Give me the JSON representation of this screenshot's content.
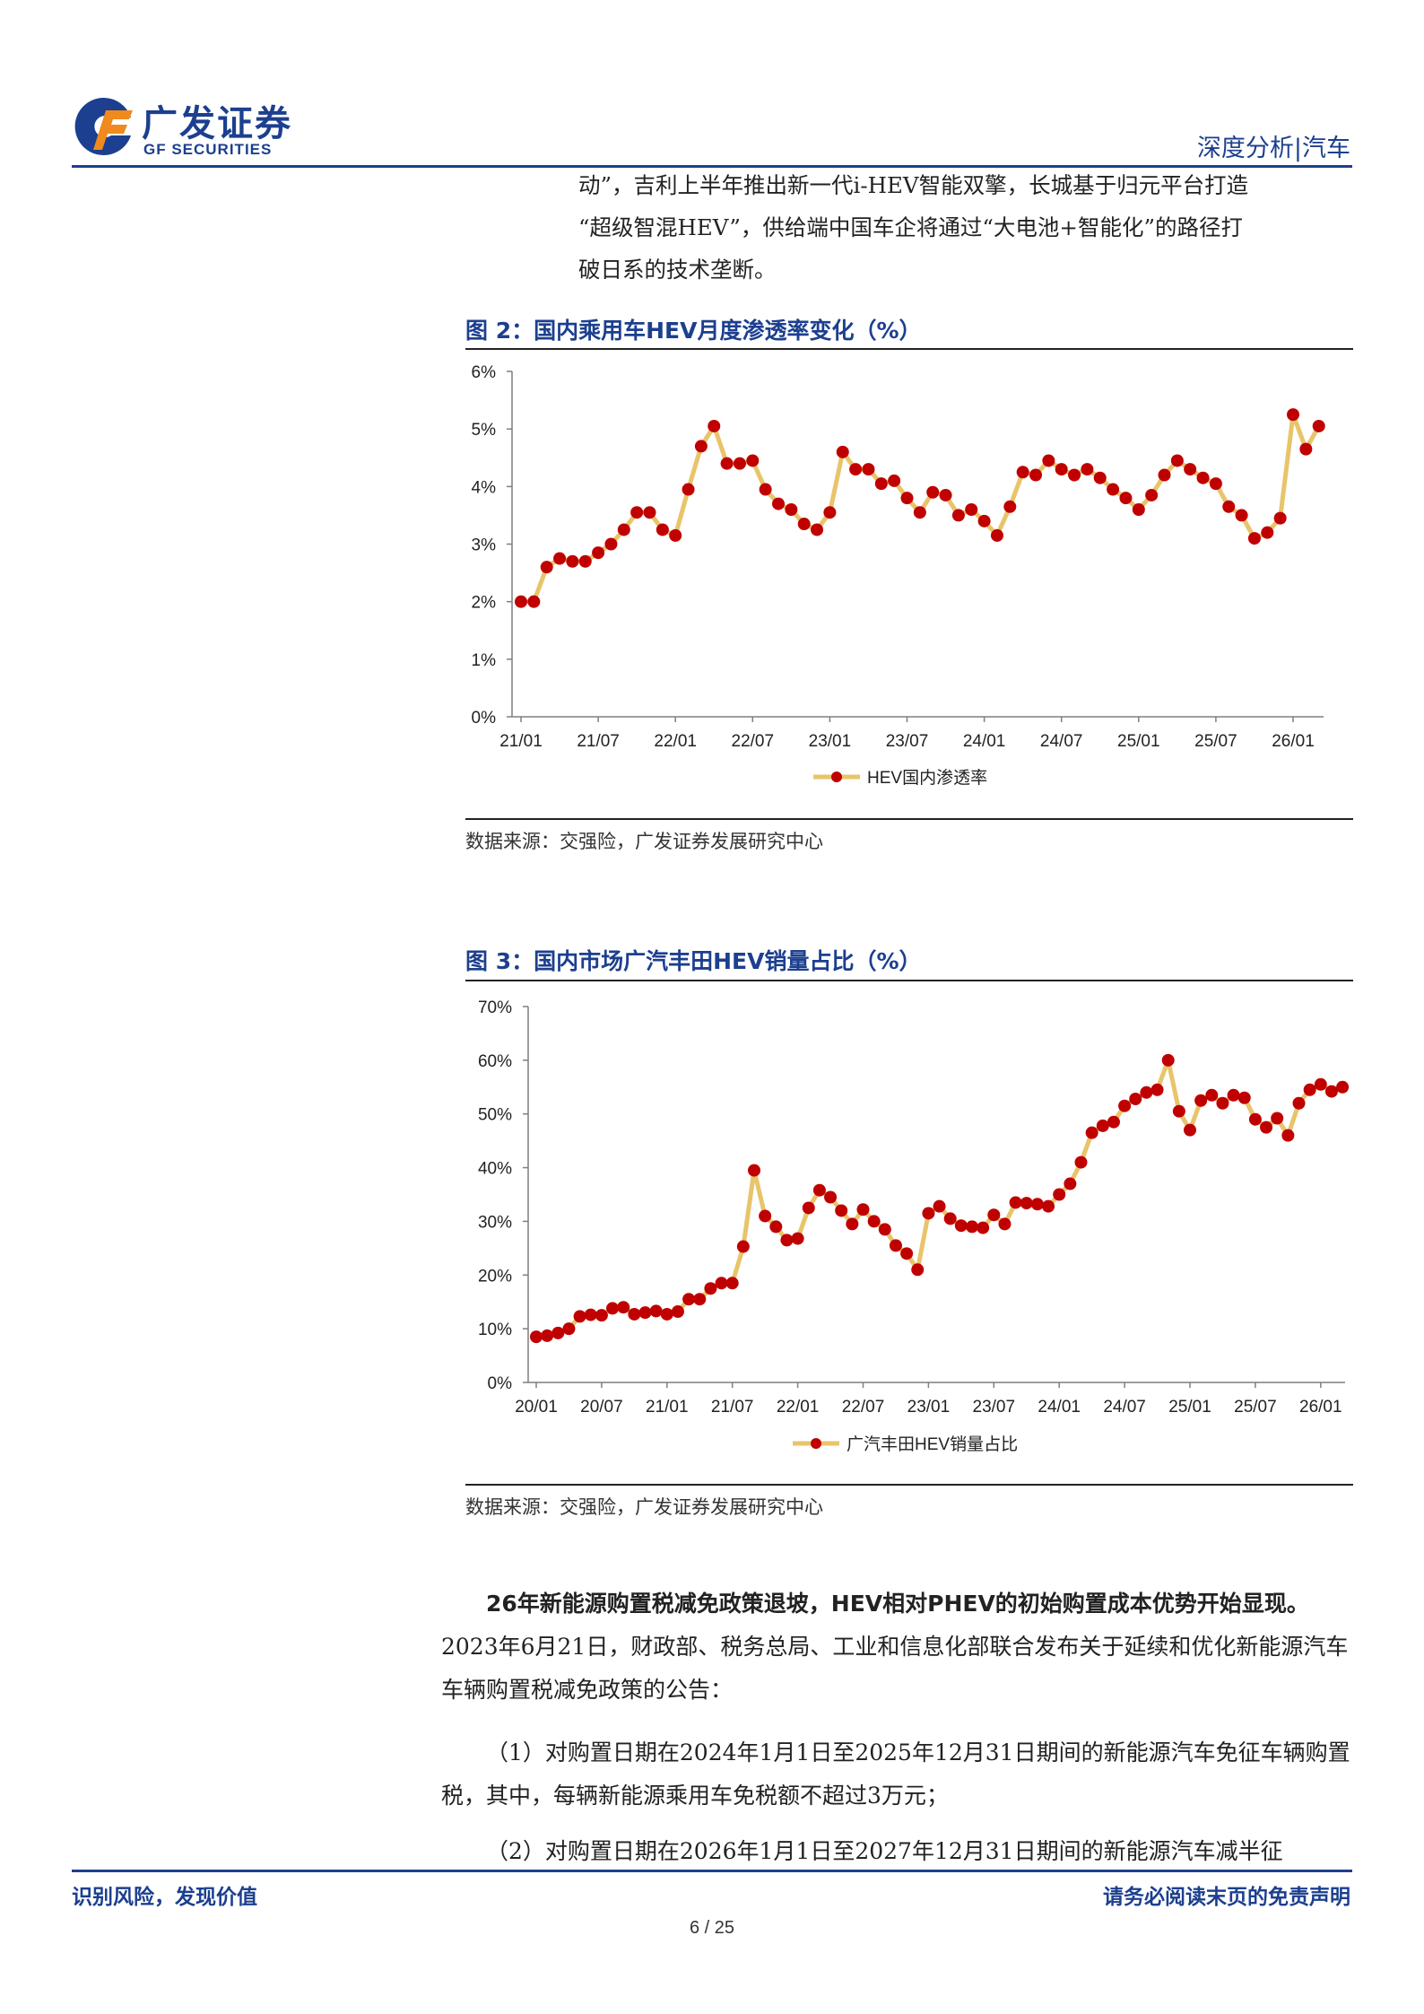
{
  "header": {
    "logo_cn": "广发证券",
    "logo_en": "GF SECURITIES",
    "section": "深度分析|汽车",
    "brand_blue": "#1c3f8f",
    "brand_orange": "#f08a1c"
  },
  "intro_lines": [
    "动”，吉利上半年推出新一代i-HEV智能双擎，长城基于归元平台打造",
    "“超级智混HEV”，供给端中国车企将通过“大电池+智能化”的路径打",
    "破日系的技术垄断。"
  ],
  "figures": [
    {
      "title": "图 2：国内乘用车HEV月度渗透率变化（%）",
      "source": "数据来源：交强险，广发证券发展研究中心"
    },
    {
      "title": "图 3：国内市场广汽丰田HEV销量占比（%）",
      "source": "数据来源：交强险，广发证券发展研究中心"
    }
  ],
  "chart_data": [
    {
      "type": "line",
      "title": "图 2：国内乘用车HEV月度渗透率变化（%）",
      "series_name": "HEV国内渗透率",
      "line_color": "#e8c46a",
      "marker_color": "#c00000",
      "ylim": [
        0,
        6
      ],
      "yticks": [
        "0%",
        "1%",
        "2%",
        "3%",
        "4%",
        "5%",
        "6%"
      ],
      "xticks": [
        "21/01",
        "21/07",
        "22/01",
        "22/07",
        "23/01",
        "23/07",
        "24/01",
        "24/07",
        "25/01",
        "25/07",
        "26/01"
      ],
      "x_start": "21/01",
      "values": [
        2.0,
        2.0,
        2.6,
        2.75,
        2.7,
        2.7,
        2.85,
        3.0,
        3.25,
        3.55,
        3.55,
        3.25,
        3.15,
        3.95,
        4.7,
        5.05,
        4.4,
        4.4,
        4.45,
        3.95,
        3.7,
        3.6,
        3.35,
        3.25,
        3.55,
        4.6,
        4.3,
        4.3,
        4.05,
        4.1,
        3.8,
        3.55,
        3.9,
        3.85,
        3.5,
        3.6,
        3.4,
        3.15,
        3.65,
        4.25,
        4.2,
        4.45,
        4.3,
        4.2,
        4.3,
        4.15,
        3.95,
        3.8,
        3.6,
        3.85,
        4.2,
        4.45,
        4.3,
        4.15,
        4.05,
        3.65,
        3.5,
        3.1,
        3.2,
        3.45,
        5.25,
        4.65,
        5.05
      ]
    },
    {
      "type": "line",
      "title": "图 3：国内市场广汽丰田HEV销量占比（%）",
      "series_name": "广汽丰田HEV销量占比",
      "line_color": "#e8c46a",
      "marker_color": "#c00000",
      "ylim": [
        0,
        70
      ],
      "yticks": [
        "0%",
        "10%",
        "20%",
        "30%",
        "40%",
        "50%",
        "60%",
        "70%"
      ],
      "xticks": [
        "20/01",
        "20/07",
        "21/01",
        "21/07",
        "22/01",
        "22/07",
        "23/01",
        "23/07",
        "24/01",
        "24/07",
        "25/01",
        "25/07",
        "26/01"
      ],
      "x_start": "20/01",
      "values": [
        8.5,
        8.7,
        9.2,
        10.0,
        12.3,
        12.6,
        12.5,
        13.8,
        14.0,
        12.7,
        13.0,
        13.3,
        12.7,
        13.2,
        15.5,
        15.5,
        17.5,
        18.5,
        18.5,
        25.3,
        39.5,
        31.0,
        29.0,
        26.5,
        26.8,
        32.5,
        35.8,
        34.5,
        32.0,
        29.5,
        32.2,
        30.0,
        28.5,
        25.5,
        24.0,
        21.0,
        31.5,
        32.8,
        30.5,
        29.2,
        29.0,
        28.8,
        31.2,
        29.5,
        33.5,
        33.4,
        33.2,
        32.8,
        35.0,
        37.0,
        41.0,
        46.5,
        47.8,
        48.5,
        51.5,
        52.8,
        54.0,
        54.5,
        60.0,
        50.5,
        47.0,
        52.5,
        53.5,
        52.0,
        53.5,
        53.0,
        49.0,
        47.5,
        49.2,
        46.0,
        52.0,
        54.5,
        55.5,
        54.2,
        55.0
      ]
    }
  ],
  "paragraphs": {
    "p1_bold": "26年新能源购置税减免政策退坡，HEV相对PHEV的初始购置成本优势开始显现。",
    "p1_rest": "2023年6月21日，财政部、税务总局、工业和信息化部联合发布关于延续和优化新能源汽车车辆购置税减免政策的公告：",
    "p2": "（1）对购置日期在2024年1月1日至2025年12月31日期间的新能源汽车免征车辆购置税，其中，每辆新能源乘用车免税额不超过3万元；",
    "p3": "（2）对购置日期在2026年1月1日至2027年12月31日期间的新能源汽车减半征"
  },
  "footer": {
    "left": "识别风险，发现价值",
    "right": "请务必阅读末页的免责声明",
    "page": "6 / 25"
  }
}
